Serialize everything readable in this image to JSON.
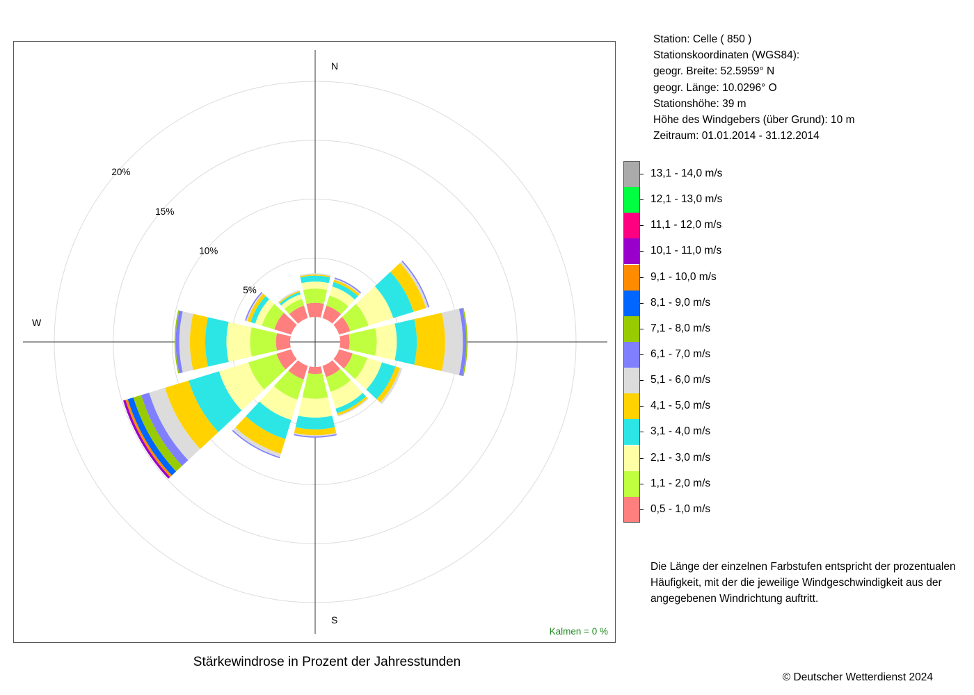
{
  "station_info": {
    "station": "Station:  Celle  ( 850 )",
    "coords_title": "Stationskoordinaten (WGS84):",
    "lat": "geogr. Breite: 52.5959° N",
    "lon": "geogr. Länge: 10.0296° O",
    "elevation": "Stationshöhe: 39 m",
    "anemometer": "Höhe des Windgebers (über Grund): 10 m",
    "period": "Zeitraum: 01.01.2014 - 31.12.2014"
  },
  "note": "Die Länge der einzelnen Farbstufen entspricht der prozentualen Häufigkeit, mit der die jeweilige Windgeschwindigkeit aus der angegebenen Windrichtung auftritt.",
  "caption": "Stärkewindrose in Prozent der Jahresstunden",
  "copyright": "© Deutscher Wetterdienst  2024",
  "calm_label": "Kalmen  =  0 %",
  "colors": {
    "calm_text": "#228B22",
    "speed_classes": [
      "#FF7F7F",
      "#BFFF3F",
      "#FFFFA5",
      "#2CE6E6",
      "#FFD200",
      "#DCDCDC",
      "#8080FF",
      "#99CC00",
      "#0066FF",
      "#FF8C00",
      "#9900CC",
      "#FF0080",
      "#00FF40",
      "#AAAAAA"
    ]
  },
  "chart_data": {
    "type": "wind_rose",
    "direction_labels": {
      "N": "N",
      "S": "S",
      "W": "W"
    },
    "directions_deg": [
      0,
      30,
      60,
      90,
      120,
      150,
      180,
      210,
      240,
      270,
      300,
      330
    ],
    "radial_ticks": [
      "5%",
      "10%",
      "15%",
      "20%"
    ],
    "radial_tick_values": [
      5,
      10,
      15,
      20
    ],
    "r_max": 25,
    "calm_percent": 0,
    "speed_classes": [
      "0,5 - 1,0 m/s",
      "1,1 - 2,0 m/s",
      "2,1 - 3,0 m/s",
      "3,1 - 4,0 m/s",
      "4,1 - 5,0 m/s",
      "5,1 - 6,0 m/s",
      "6,1 - 7,0 m/s",
      "7,1 - 8,0 m/s",
      "8,1 - 9,0 m/s",
      "9,1 - 10,0 m/s",
      "10,1 - 11,0 m/s",
      "11,1 - 12,0 m/s",
      "12,1 - 13,0 m/s",
      "13,1 - 14,0 m/s"
    ],
    "series": [
      {
        "direction": 0,
        "values": [
          1.2,
          1.2,
          0.6,
          0.5,
          0.1,
          0.1,
          0,
          0,
          0,
          0,
          0,
          0,
          0,
          0
        ]
      },
      {
        "direction": 30,
        "values": [
          1.1,
          0.9,
          0.8,
          0.4,
          0.2,
          0.1,
          0.1,
          0,
          0,
          0,
          0,
          0,
          0,
          0
        ]
      },
      {
        "direction": 60,
        "values": [
          1.0,
          1.6,
          2.2,
          1.8,
          1.1,
          0.2,
          0.1,
          0,
          0,
          0,
          0,
          0,
          0,
          0
        ]
      },
      {
        "direction": 90,
        "values": [
          0.8,
          2.3,
          1.7,
          1.7,
          2.4,
          1.5,
          0.3,
          0.1,
          0,
          0,
          0,
          0,
          0,
          0
        ]
      },
      {
        "direction": 120,
        "values": [
          1.2,
          1.3,
          1.3,
          1.2,
          0.4,
          0.2,
          0,
          0,
          0,
          0,
          0,
          0,
          0,
          0
        ]
      },
      {
        "direction": 150,
        "values": [
          1.0,
          1.3,
          1.5,
          0.4,
          0.2,
          0.1,
          0,
          0,
          0,
          0,
          0,
          0,
          0,
          0
        ]
      },
      {
        "direction": 180,
        "values": [
          0.6,
          2.1,
          1.6,
          1.0,
          0.5,
          0.1,
          0.1,
          0,
          0,
          0,
          0,
          0,
          0,
          0
        ]
      },
      {
        "direction": 210,
        "values": [
          1.2,
          1.8,
          1.8,
          1.7,
          1.3,
          0.3,
          0.1,
          0,
          0,
          0,
          0,
          0,
          0,
          0
        ]
      },
      {
        "direction": 240,
        "values": [
          1.3,
          2.5,
          2.6,
          2.7,
          2.1,
          1.4,
          0.7,
          0.7,
          0.5,
          0.2,
          0.2,
          0,
          0,
          0
        ]
      },
      {
        "direction": 270,
        "values": [
          1.2,
          2.2,
          2.0,
          1.8,
          1.3,
          0.9,
          0.3,
          0.1,
          0,
          0,
          0,
          0,
          0,
          0
        ]
      },
      {
        "direction": 300,
        "values": [
          1.5,
          1.1,
          0.6,
          0.4,
          0.3,
          0.1,
          0.1,
          0,
          0,
          0,
          0,
          0,
          0,
          0
        ]
      },
      {
        "direction": 330,
        "values": [
          1.1,
          0.6,
          0.4,
          0.2,
          0.1,
          0.1,
          0,
          0,
          0,
          0,
          0,
          0,
          0,
          0
        ]
      }
    ]
  }
}
